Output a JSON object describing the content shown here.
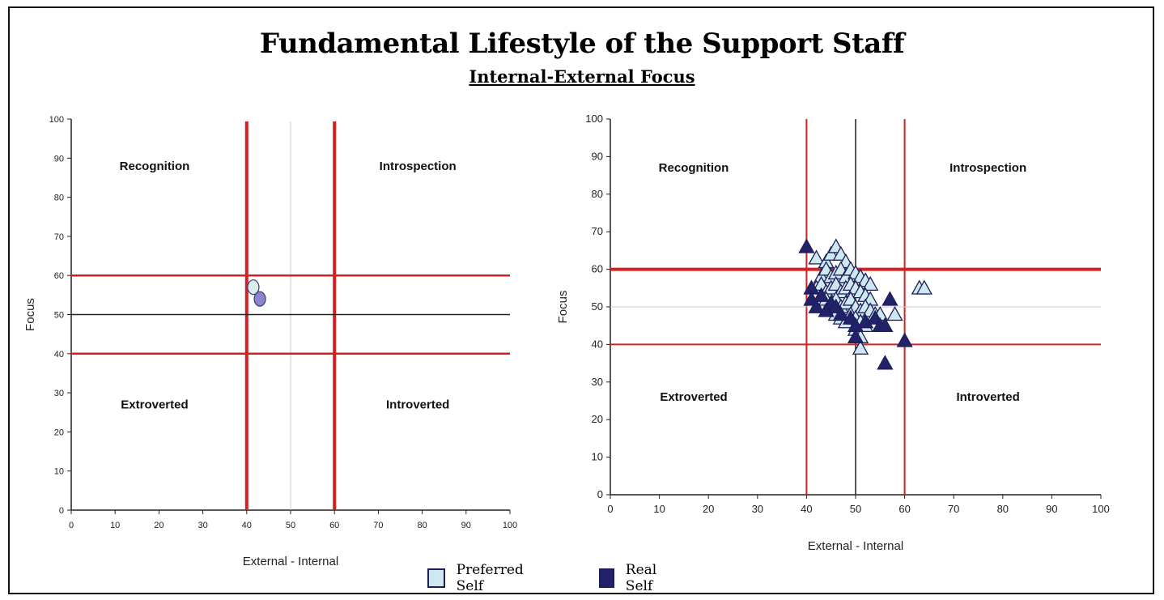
{
  "title": "Fundamental Lifestyle of the Support Staff",
  "subtitle": "Internal-External Focus",
  "legend": {
    "items": [
      {
        "label": "Preferred Self",
        "color": "#cde8ee"
      },
      {
        "label": "Real Self",
        "color": "#22226a"
      }
    ]
  },
  "chart_data": [
    {
      "type": "scatter",
      "xlabel": "External - Internal",
      "ylabel": "Focus",
      "xlim": [
        0,
        100
      ],
      "ylim": [
        0,
        100
      ],
      "xticks": [
        "0",
        "10",
        "20",
        "30",
        "40",
        "50",
        "60",
        "70",
        "80",
        "90",
        "100"
      ],
      "yticks": [
        "0",
        "10",
        "20",
        "30",
        "40",
        "50",
        "60",
        "70",
        "80",
        "90",
        "100"
      ],
      "quadrant_labels": {
        "top_left": "Recognition",
        "top_right": "Introspection",
        "bottom_left": "Extroverted",
        "bottom_right": "Introverted"
      },
      "vertical_lines": [
        40,
        50,
        60
      ],
      "horizontal_lines": [
        60,
        50,
        40
      ],
      "series": [
        {
          "name": "Preferred Self",
          "marker": "circle",
          "color": "#d9ecec",
          "points": [
            [
              41.5,
              57
            ]
          ]
        },
        {
          "name": "Real Self",
          "marker": "circle",
          "color": "#8a84c8",
          "points": [
            [
              43,
              54
            ]
          ]
        }
      ]
    },
    {
      "type": "scatter",
      "xlabel": "External - Internal",
      "ylabel": "Focus",
      "xlim": [
        0,
        100
      ],
      "ylim": [
        0,
        100
      ],
      "xticks": [
        "0",
        "10",
        "20",
        "30",
        "40",
        "50",
        "60",
        "70",
        "80",
        "90",
        "100"
      ],
      "yticks": [
        "0",
        "10",
        "20",
        "30",
        "40",
        "50",
        "60",
        "70",
        "80",
        "90",
        "100"
      ],
      "quadrant_labels": {
        "top_left": "Recognition",
        "top_right": "Introspection",
        "bottom_left": "Extroverted",
        "bottom_right": "Introverted"
      },
      "vertical_lines": [
        40,
        50,
        60
      ],
      "horizontal_lines": [
        60,
        50,
        40
      ],
      "series": [
        {
          "name": "Preferred Self",
          "marker": "triangle",
          "color": "#cde8ee",
          "points": [
            [
              42,
              63
            ],
            [
              44,
              62
            ],
            [
              45,
              64
            ],
            [
              46,
              66
            ],
            [
              47,
              64
            ],
            [
              48,
              62
            ],
            [
              43,
              58
            ],
            [
              44,
              60
            ],
            [
              45,
              58
            ],
            [
              46,
              59
            ],
            [
              47,
              60
            ],
            [
              48,
              58
            ],
            [
              49,
              60
            ],
            [
              50,
              59
            ],
            [
              51,
              58
            ],
            [
              52,
              57
            ],
            [
              53,
              56
            ],
            [
              42,
              55
            ],
            [
              43,
              56
            ],
            [
              44,
              54
            ],
            [
              45,
              55
            ],
            [
              46,
              56
            ],
            [
              47,
              54
            ],
            [
              48,
              55
            ],
            [
              49,
              56
            ],
            [
              50,
              55
            ],
            [
              51,
              54
            ],
            [
              52,
              53
            ],
            [
              53,
              52
            ],
            [
              44,
              52
            ],
            [
              45,
              51
            ],
            [
              46,
              52
            ],
            [
              47,
              50
            ],
            [
              48,
              51
            ],
            [
              49,
              52
            ],
            [
              50,
              50
            ],
            [
              51,
              49
            ],
            [
              52,
              50
            ],
            [
              53,
              49
            ],
            [
              54,
              48
            ],
            [
              46,
              48
            ],
            [
              47,
              47
            ],
            [
              48,
              46
            ],
            [
              49,
              48
            ],
            [
              50,
              47
            ],
            [
              51,
              46
            ],
            [
              52,
              45
            ],
            [
              55,
              48
            ],
            [
              58,
              48
            ],
            [
              50,
              44
            ],
            [
              51,
              42
            ],
            [
              51,
              39
            ],
            [
              63,
              55
            ],
            [
              64,
              55
            ]
          ]
        },
        {
          "name": "Real Self",
          "marker": "triangle",
          "color": "#22226a",
          "points": [
            [
              40,
              66
            ],
            [
              41,
              55
            ],
            [
              41,
              52
            ],
            [
              42,
              50
            ],
            [
              43,
              53
            ],
            [
              44,
              49
            ],
            [
              45,
              51
            ],
            [
              46,
              50
            ],
            [
              47,
              48
            ],
            [
              49,
              47
            ],
            [
              50,
              45
            ],
            [
              52,
              46
            ],
            [
              54,
              47
            ],
            [
              55,
              45
            ],
            [
              56,
              45
            ],
            [
              57,
              52
            ],
            [
              60,
              41
            ],
            [
              56,
              35
            ],
            [
              50,
              42
            ]
          ]
        }
      ]
    }
  ]
}
